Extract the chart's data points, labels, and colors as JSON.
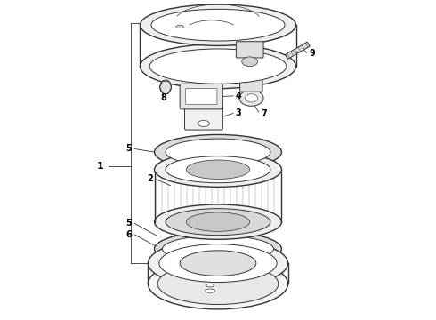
{
  "background_color": "#ffffff",
  "line_color": "#333333",
  "label_color": "#000000",
  "lw_thin": 0.7,
  "lw_med": 1.0,
  "label_fs": 7
}
